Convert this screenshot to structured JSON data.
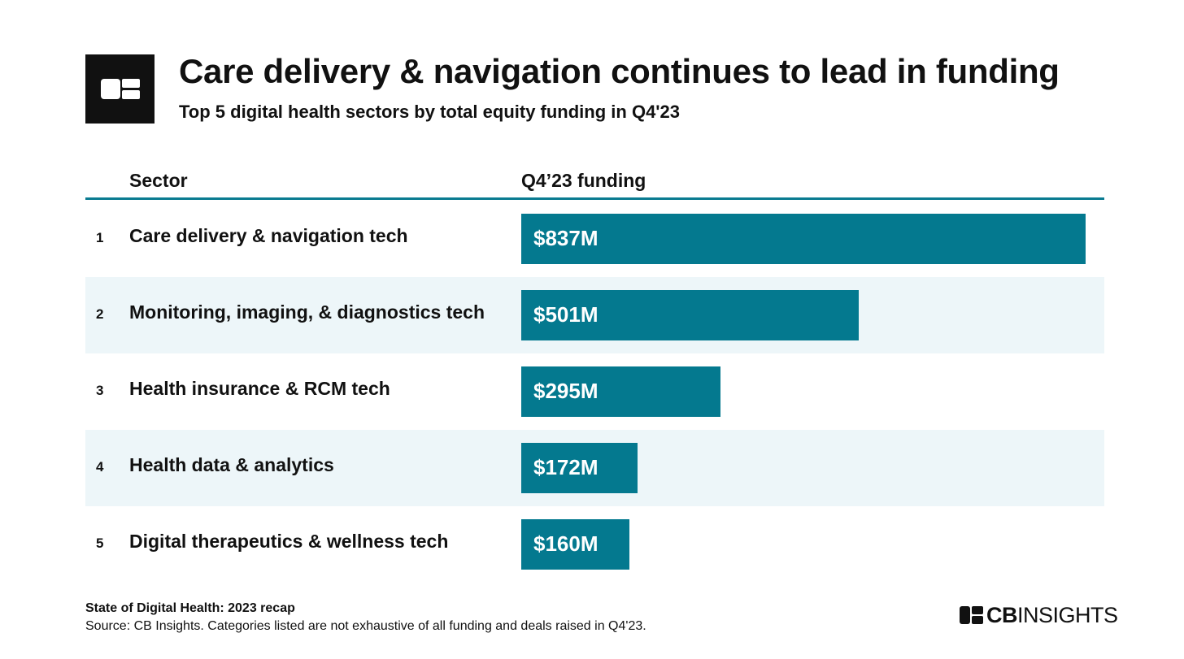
{
  "header": {
    "title": "Care delivery & navigation continues to lead in funding",
    "subtitle": "Top 5 digital health sectors by total equity funding in Q4'23"
  },
  "table": {
    "col_sector": "Sector",
    "col_funding": "Q4’23 funding"
  },
  "rows": [
    {
      "rank": "1",
      "sector": "Care delivery & navigation tech",
      "label": "$837M"
    },
    {
      "rank": "2",
      "sector": "Monitoring, imaging, & diagnostics tech",
      "label": "$501M"
    },
    {
      "rank": "3",
      "sector": "Health insurance & RCM tech",
      "label": "$295M"
    },
    {
      "rank": "4",
      "sector": "Health data & analytics",
      "label": "$172M"
    },
    {
      "rank": "5",
      "sector": "Digital therapeutics & wellness tech",
      "label": "$160M"
    }
  ],
  "chart_data": {
    "type": "bar",
    "orientation": "horizontal",
    "categories": [
      "Care delivery & navigation tech",
      "Monitoring, imaging, & diagnostics tech",
      "Health insurance & RCM tech",
      "Health data & analytics",
      "Digital therapeutics & wellness tech"
    ],
    "values": [
      837,
      501,
      295,
      172,
      160
    ],
    "unit": "$M",
    "title": "Care delivery & navigation continues to lead in funding",
    "subtitle": "Top 5 digital health sectors by total equity funding in Q4'23",
    "grid": false
  },
  "footer": {
    "report": "State of Digital Health: 2023 recap",
    "source": "Source: CB Insights. Categories listed are not exhaustive of all funding and deals raised in Q4'23.",
    "brand_bold": "CB",
    "brand_light": "INSIGHTS"
  },
  "colors": {
    "bar": "#04798f",
    "rule": "#0a7b91",
    "alt_row": "#edf6f9",
    "text": "#111111"
  },
  "icons": {
    "logo": "cb-insights-logo-icon"
  }
}
